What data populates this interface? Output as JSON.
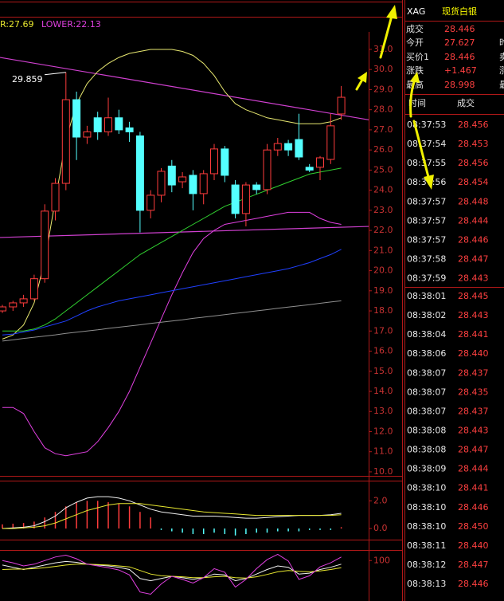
{
  "chart_data": {
    "type": "candlestick",
    "header": {
      "upper": "R:27.69",
      "lower": "LOWER:22.13"
    },
    "annotation": 29.859,
    "ylim": [
      9.8,
      31.87
    ],
    "yticks": [
      {
        "value": 10,
        "label": "10.0"
      },
      {
        "value": 11,
        "label": "11.0"
      },
      {
        "value": 12,
        "label": "12.0"
      },
      {
        "value": 13,
        "label": "13.0"
      },
      {
        "value": 14,
        "label": "14.0"
      },
      {
        "value": 15,
        "label": "15.0"
      },
      {
        "value": 16,
        "label": "16.0"
      },
      {
        "value": 17,
        "label": "17.0"
      },
      {
        "value": 18,
        "label": "18.0"
      },
      {
        "value": 19,
        "label": "19.0"
      },
      {
        "value": 20,
        "label": "20.0"
      },
      {
        "value": 21,
        "label": "21.0"
      },
      {
        "value": 22,
        "label": "22.0"
      },
      {
        "value": 23,
        "label": "23.0"
      },
      {
        "value": 24,
        "label": "24.0"
      },
      {
        "value": 25,
        "label": "25.0"
      },
      {
        "value": 26,
        "label": "26.0"
      },
      {
        "value": 27,
        "label": "27.0"
      },
      {
        "value": 28,
        "label": "28.0"
      },
      {
        "value": 29,
        "label": "29.0"
      },
      {
        "value": 30,
        "label": "30.0"
      },
      {
        "value": 31,
        "label": "31.0"
      }
    ],
    "up_color": "#ff3c3c",
    "down_color": "#54ffff",
    "candles": [
      {
        "open": 18.0,
        "high": 18.3,
        "low": 17.9,
        "close": 18.2
      },
      {
        "open": 18.2,
        "high": 18.5,
        "low": 18.0,
        "close": 18.4
      },
      {
        "open": 18.4,
        "high": 18.8,
        "low": 18.2,
        "close": 18.6
      },
      {
        "open": 18.6,
        "high": 19.8,
        "low": 18.5,
        "close": 19.6
      },
      {
        "open": 19.6,
        "high": 23.3,
        "low": 19.4,
        "close": 22.96
      },
      {
        "open": 22.96,
        "high": 24.6,
        "low": 22.5,
        "close": 24.34
      },
      {
        "open": 24.34,
        "high": 29.859,
        "low": 24.0,
        "close": 28.5
      },
      {
        "open": 28.5,
        "high": 28.9,
        "low": 25.5,
        "close": 26.64
      },
      {
        "open": 26.64,
        "high": 27.2,
        "low": 26.3,
        "close": 26.9
      },
      {
        "open": 27.6,
        "high": 27.9,
        "low": 26.5,
        "close": 26.9
      },
      {
        "open": 26.9,
        "high": 28.6,
        "low": 26.7,
        "close": 27.6
      },
      {
        "open": 27.6,
        "high": 28.0,
        "low": 26.8,
        "close": 27.0
      },
      {
        "open": 27.1,
        "high": 27.4,
        "low": 26.4,
        "close": 26.9
      },
      {
        "open": 26.7,
        "high": 26.9,
        "low": 21.9,
        "close": 23.0
      },
      {
        "open": 23.0,
        "high": 24.0,
        "low": 22.6,
        "close": 23.75
      },
      {
        "open": 23.75,
        "high": 25.1,
        "low": 23.4,
        "close": 24.94
      },
      {
        "open": 25.2,
        "high": 25.5,
        "low": 23.9,
        "close": 24.26
      },
      {
        "open": 24.42,
        "high": 24.9,
        "low": 24.1,
        "close": 24.66
      },
      {
        "open": 24.74,
        "high": 25.0,
        "low": 23.0,
        "close": 23.83
      },
      {
        "open": 23.83,
        "high": 25.0,
        "low": 23.3,
        "close": 24.82
      },
      {
        "open": 24.82,
        "high": 26.3,
        "low": 24.5,
        "close": 26.05
      },
      {
        "open": 26.05,
        "high": 26.2,
        "low": 24.4,
        "close": 24.74
      },
      {
        "open": 24.26,
        "high": 24.5,
        "low": 22.6,
        "close": 22.84
      },
      {
        "open": 22.84,
        "high": 24.4,
        "low": 22.2,
        "close": 24.26
      },
      {
        "open": 24.26,
        "high": 24.4,
        "low": 23.8,
        "close": 24.03
      },
      {
        "open": 24.03,
        "high": 26.3,
        "low": 23.8,
        "close": 26.0
      },
      {
        "open": 26.0,
        "high": 26.6,
        "low": 25.7,
        "close": 26.32
      },
      {
        "open": 26.32,
        "high": 26.5,
        "low": 25.7,
        "close": 26.0
      },
      {
        "open": 26.52,
        "high": 27.8,
        "low": 25.5,
        "close": 25.65
      },
      {
        "open": 25.14,
        "high": 25.3,
        "low": 24.9,
        "close": 25.0
      },
      {
        "open": 25.14,
        "high": 25.7,
        "low": 24.5,
        "close": 25.61
      },
      {
        "open": 25.53,
        "high": 27.8,
        "low": 25.3,
        "close": 27.2
      },
      {
        "open": 27.79,
        "high": 29.18,
        "low": 27.5,
        "close": 28.62
      }
    ],
    "lines": [
      {
        "color": "#e8e870",
        "values": [
          16.6,
          16.8,
          17.3,
          18.4,
          20.5,
          23.5,
          26.5,
          28.3,
          29.3,
          29.9,
          30.3,
          30.6,
          30.8,
          30.9,
          31.0,
          31.0,
          31.0,
          30.9,
          30.7,
          30.3,
          29.7,
          28.9,
          28.3,
          28.0,
          27.8,
          27.6,
          27.5,
          27.4,
          27.3,
          27.3,
          27.3,
          27.4,
          27.6
        ]
      },
      {
        "color": "#e040e0",
        "values": [
          13.2,
          13.2,
          12.9,
          12.0,
          11.2,
          10.9,
          10.8,
          10.9,
          11.0,
          11.5,
          12.2,
          13.0,
          14.0,
          15.2,
          16.4,
          17.6,
          18.8,
          19.9,
          20.9,
          21.6,
          22.0,
          22.3,
          22.4,
          22.5,
          22.6,
          22.7,
          22.8,
          22.9,
          22.9,
          22.9,
          22.6,
          22.4,
          22.3
        ]
      },
      {
        "color": "#2040ff",
        "values": [
          16.8,
          16.85,
          16.95,
          17.05,
          17.2,
          17.35,
          17.5,
          17.75,
          18.0,
          18.2,
          18.35,
          18.5,
          18.6,
          18.7,
          18.8,
          18.9,
          19.0,
          19.1,
          19.2,
          19.3,
          19.4,
          19.5,
          19.6,
          19.7,
          19.8,
          19.9,
          20.0,
          20.1,
          20.25,
          20.4,
          20.6,
          20.8,
          21.06
        ]
      },
      {
        "color": "#909090",
        "values": [
          16.5,
          16.56,
          16.63,
          16.69,
          16.75,
          16.81,
          16.88,
          16.94,
          17.0,
          17.06,
          17.13,
          17.19,
          17.25,
          17.31,
          17.38,
          17.44,
          17.5,
          17.56,
          17.63,
          17.69,
          17.75,
          17.81,
          17.88,
          17.94,
          18.0,
          18.06,
          18.13,
          18.19,
          18.25,
          18.31,
          18.38,
          18.44,
          18.5
        ]
      },
      {
        "color": "#30d030",
        "values": [
          17.0,
          17.0,
          17.0,
          17.1,
          17.3,
          17.6,
          18.0,
          18.4,
          18.8,
          19.2,
          19.6,
          20.0,
          20.4,
          20.8,
          21.1,
          21.4,
          21.7,
          22.0,
          22.3,
          22.6,
          22.9,
          23.2,
          23.4,
          23.6,
          23.8,
          24.0,
          24.2,
          24.4,
          24.6,
          24.8,
          24.9,
          25.0,
          25.1
        ]
      }
    ],
    "trend_lines": [
      {
        "color": "#d040d0",
        "start": 30.6,
        "end": 27.5
      },
      {
        "color": "#d040d0",
        "start": 21.65,
        "end": 22.2
      }
    ],
    "macd": {
      "ylim": [
        -0.8,
        3.4
      ],
      "yticks": [
        {
          "value": 0,
          "label": "0.0"
        },
        {
          "value": 2,
          "label": "2.0"
        }
      ],
      "histogram": [
        0.3,
        0.35,
        0.4,
        0.5,
        0.8,
        1.2,
        1.6,
        1.9,
        2.0,
        2.0,
        1.9,
        1.8,
        1.6,
        1.2,
        0.8,
        -0.1,
        -0.2,
        -0.3,
        -0.4,
        -0.4,
        -0.3,
        -0.4,
        -0.5,
        -0.4,
        -0.3,
        -0.3,
        -0.2,
        -0.2,
        -0.2,
        -0.1,
        -0.1,
        -0.1,
        0.1
      ],
      "lines": [
        {
          "color": "#f0f0f0",
          "values": [
            0.0,
            0.05,
            0.1,
            0.2,
            0.5,
            0.9,
            1.5,
            1.9,
            2.2,
            2.3,
            2.3,
            2.2,
            2.0,
            1.7,
            1.4,
            1.2,
            1.1,
            1.0,
            0.9,
            0.9,
            0.9,
            0.85,
            0.8,
            0.75,
            0.75,
            0.8,
            0.85,
            0.9,
            0.95,
            0.95,
            0.95,
            1.0,
            1.1
          ]
        },
        {
          "color": "#e8e830",
          "values": [
            0.0,
            0.0,
            0.05,
            0.1,
            0.2,
            0.4,
            0.7,
            1.0,
            1.3,
            1.5,
            1.7,
            1.8,
            1.8,
            1.8,
            1.7,
            1.6,
            1.5,
            1.4,
            1.3,
            1.2,
            1.15,
            1.1,
            1.05,
            1.0,
            0.95,
            0.95,
            0.95,
            0.95,
            0.95,
            0.95,
            0.95,
            0.95,
            1.0
          ]
        }
      ]
    },
    "kdj": {
      "ylim": [
        10,
        120
      ],
      "yticks": [
        100
      ],
      "lines": [
        {
          "color": "#f0f0f0",
          "values": [
            90,
            85,
            80,
            85,
            90,
            95,
            98,
            96,
            92,
            90,
            88,
            85,
            80,
            60,
            55,
            60,
            65,
            62,
            58,
            62,
            70,
            68,
            55,
            60,
            70,
            80,
            88,
            85,
            70,
            72,
            80,
            85,
            92
          ]
        },
        {
          "color": "#e8e830",
          "values": [
            80,
            81,
            81,
            82,
            84,
            87,
            90,
            92,
            92,
            91,
            90,
            88,
            86,
            78,
            70,
            66,
            65,
            64,
            62,
            62,
            64,
            65,
            62,
            61,
            64,
            69,
            75,
            78,
            76,
            75,
            77,
            80,
            84
          ]
        },
        {
          "color": "#e040e0",
          "values": [
            100,
            95,
            88,
            92,
            100,
            108,
            112,
            104,
            92,
            88,
            84,
            79,
            68,
            30,
            25,
            48,
            65,
            58,
            50,
            62,
            82,
            74,
            41,
            58,
            82,
            102,
            114,
            99,
            58,
            66,
            86,
            95,
            108
          ]
        }
      ]
    }
  },
  "quote": {
    "symbol": "XAG",
    "name": "现货白银",
    "rows": [
      {
        "label": "成交",
        "value": "28.446"
      },
      {
        "label": "今开",
        "value": "27.627"
      },
      {
        "label": "买价1",
        "value": "28.446"
      },
      {
        "label": "涨跌",
        "value": "+1.467"
      },
      {
        "label": "最高",
        "value": "28.998"
      }
    ],
    "side_labels": [
      "时",
      "卖",
      "涨",
      "最"
    ]
  },
  "trades": {
    "header": [
      "时间",
      "成交"
    ],
    "blocks": [
      [
        [
          "08:37:53",
          "28.456"
        ],
        [
          "08:37:54",
          "28.453"
        ],
        [
          "08:37:55",
          "28.456"
        ],
        [
          "08:37:56",
          "28.454"
        ],
        [
          "08:37:57",
          "28.448"
        ],
        [
          "08:37:57",
          "28.444"
        ],
        [
          "08:37:57",
          "28.446"
        ],
        [
          "08:37:58",
          "28.447"
        ],
        [
          "08:37:59",
          "28.443"
        ]
      ],
      [
        [
          "08:38:01",
          "28.445"
        ],
        [
          "08:38:02",
          "28.443"
        ],
        [
          "08:38:04",
          "28.441"
        ],
        [
          "08:38:06",
          "28.440"
        ],
        [
          "08:38:07",
          "28.437"
        ],
        [
          "08:38:07",
          "28.435"
        ],
        [
          "08:38:07",
          "28.437"
        ],
        [
          "08:38:08",
          "28.443"
        ],
        [
          "08:38:08",
          "28.447"
        ],
        [
          "08:38:09",
          "28.444"
        ],
        [
          "08:38:10",
          "28.441"
        ],
        [
          "08:38:10",
          "28.446"
        ],
        [
          "08:38:10",
          "28.450"
        ],
        [
          "08:38:11",
          "28.440"
        ],
        [
          "08:38:12",
          "28.447"
        ],
        [
          "08:38:13",
          "28.446"
        ]
      ]
    ]
  }
}
